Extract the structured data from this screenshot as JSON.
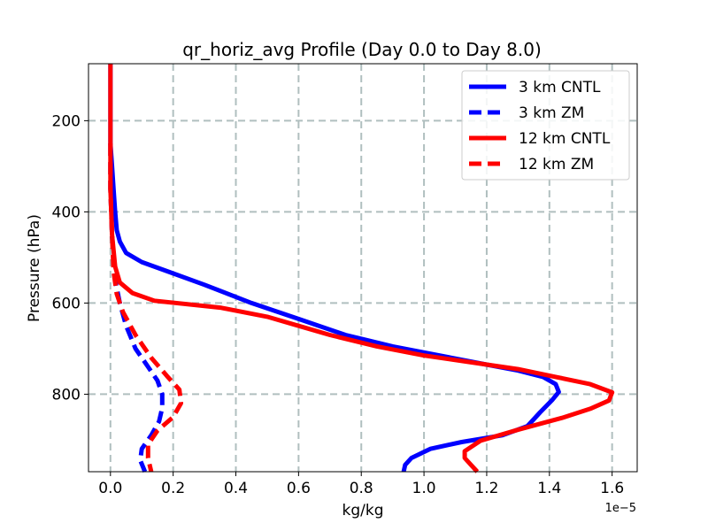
{
  "chart_data": {
    "type": "line",
    "title": "qr_horiz_avg Profile (Day 0.0 to Day 8.0)",
    "xlabel": "kg/kg",
    "ylabel": "Pressure (hPa)",
    "x_offset_label": "1e−5",
    "x_scale": 1e-05,
    "xlim": [
      -0.07,
      1.68
    ],
    "ylim": [
      970,
      75
    ],
    "y_inverted": true,
    "xticks": [
      0.0,
      0.2,
      0.4,
      0.6,
      0.8,
      1.0,
      1.2,
      1.4,
      1.6
    ],
    "xtick_labels": [
      "0.0",
      "0.2",
      "0.4",
      "0.6",
      "0.8",
      "1.0",
      "1.2",
      "1.4",
      "1.6"
    ],
    "yticks": [
      200,
      400,
      600,
      800
    ],
    "ytick_labels": [
      "200",
      "400",
      "600",
      "800"
    ],
    "grid": true,
    "legend_position": "top-right",
    "series": [
      {
        "name": "3 km CNTL",
        "color": "#0000ff",
        "linestyle": "solid",
        "points": [
          [
            0.0,
            75
          ],
          [
            0.0,
            150
          ],
          [
            0.0,
            250
          ],
          [
            0.005,
            300
          ],
          [
            0.01,
            350
          ],
          [
            0.015,
            400
          ],
          [
            0.02,
            440
          ],
          [
            0.03,
            465
          ],
          [
            0.05,
            490
          ],
          [
            0.1,
            510
          ],
          [
            0.18,
            530
          ],
          [
            0.3,
            560
          ],
          [
            0.45,
            600
          ],
          [
            0.6,
            635
          ],
          [
            0.75,
            670
          ],
          [
            0.9,
            695
          ],
          [
            1.05,
            715
          ],
          [
            1.2,
            735
          ],
          [
            1.3,
            748
          ],
          [
            1.38,
            762
          ],
          [
            1.42,
            778
          ],
          [
            1.43,
            795
          ],
          [
            1.41,
            812
          ],
          [
            1.37,
            840
          ],
          [
            1.33,
            870
          ],
          [
            1.25,
            890
          ],
          [
            1.12,
            905
          ],
          [
            1.02,
            920
          ],
          [
            0.96,
            940
          ],
          [
            0.94,
            955
          ],
          [
            0.935,
            970
          ]
        ]
      },
      {
        "name": "3 km ZM",
        "color": "#0000ff",
        "linestyle": "dashed",
        "points": [
          [
            0.0,
            250
          ],
          [
            0.0,
            350
          ],
          [
            0.005,
            450
          ],
          [
            0.015,
            550
          ],
          [
            0.03,
            600
          ],
          [
            0.05,
            650
          ],
          [
            0.08,
            700
          ],
          [
            0.12,
            740
          ],
          [
            0.15,
            770
          ],
          [
            0.165,
            800
          ],
          [
            0.165,
            830
          ],
          [
            0.155,
            860
          ],
          [
            0.13,
            890
          ],
          [
            0.1,
            920
          ],
          [
            0.095,
            945
          ],
          [
            0.11,
            970
          ]
        ]
      },
      {
        "name": "12 km CNTL",
        "color": "#ff0000",
        "linestyle": "solid",
        "points": [
          [
            0.0,
            75
          ],
          [
            0.0,
            150
          ],
          [
            0.0,
            250
          ],
          [
            0.0,
            350
          ],
          [
            0.005,
            450
          ],
          [
            0.015,
            520
          ],
          [
            0.03,
            555
          ],
          [
            0.07,
            578
          ],
          [
            0.14,
            595
          ],
          [
            0.35,
            610
          ],
          [
            0.5,
            630
          ],
          [
            0.6,
            650
          ],
          [
            0.7,
            670
          ],
          [
            0.85,
            695
          ],
          [
            1.0,
            715
          ],
          [
            1.15,
            730
          ],
          [
            1.3,
            745
          ],
          [
            1.42,
            762
          ],
          [
            1.53,
            778
          ],
          [
            1.6,
            796
          ],
          [
            1.59,
            814
          ],
          [
            1.53,
            832
          ],
          [
            1.44,
            852
          ],
          [
            1.3,
            878
          ],
          [
            1.18,
            902
          ],
          [
            1.13,
            925
          ],
          [
            1.13,
            940
          ],
          [
            1.15,
            955
          ],
          [
            1.17,
            970
          ]
        ]
      },
      {
        "name": "12 km ZM",
        "color": "#ff0000",
        "linestyle": "dashed",
        "points": [
          [
            0.0,
            250
          ],
          [
            0.0,
            350
          ],
          [
            0.005,
            450
          ],
          [
            0.01,
            530
          ],
          [
            0.02,
            580
          ],
          [
            0.04,
            620
          ],
          [
            0.08,
            670
          ],
          [
            0.13,
            720
          ],
          [
            0.18,
            760
          ],
          [
            0.22,
            790
          ],
          [
            0.225,
            820
          ],
          [
            0.2,
            850
          ],
          [
            0.15,
            880
          ],
          [
            0.12,
            910
          ],
          [
            0.12,
            940
          ],
          [
            0.13,
            970
          ]
        ]
      }
    ]
  }
}
